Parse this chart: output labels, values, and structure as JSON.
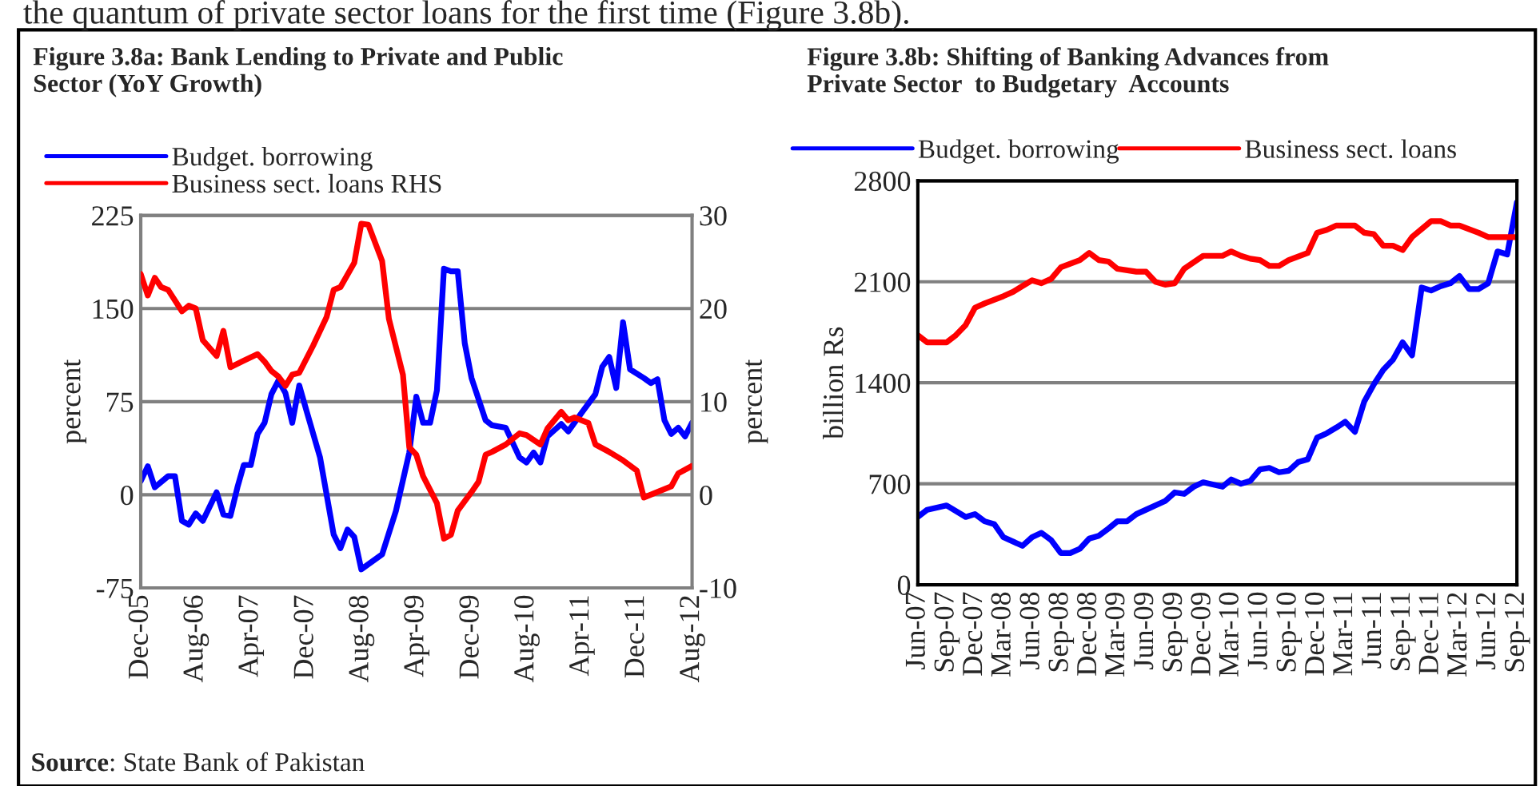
{
  "chart_data": [
    {
      "type": "line",
      "title": "Figure 3.8a: Bank Lending to Private and Public\nSector (YoY Growth)",
      "ylabel": "percent",
      "y2label": "percent",
      "ylim": [
        -75,
        225
      ],
      "yticks": [
        -75,
        0,
        75,
        150,
        225
      ],
      "y2lim": [
        -10,
        30
      ],
      "y2ticks": [
        -10,
        0,
        10,
        20,
        30
      ],
      "xlim": [
        "2005-12",
        "2012-08"
      ],
      "xticks": [
        {
          "value": "2005-12",
          "label": "Dec-05"
        },
        {
          "value": "2006-08",
          "label": "Aug-06"
        },
        {
          "value": "2007-04",
          "label": "Apr-07"
        },
        {
          "value": "2007-12",
          "label": "Dec-07"
        },
        {
          "value": "2008-08",
          "label": "Aug-08"
        },
        {
          "value": "2009-04",
          "label": "Apr-09"
        },
        {
          "value": "2009-12",
          "label": "Dec-09"
        },
        {
          "value": "2010-08",
          "label": "Aug-10"
        },
        {
          "value": "2011-04",
          "label": "Apr-11"
        },
        {
          "value": "2011-12",
          "label": "Dec-11"
        },
        {
          "value": "2012-08",
          "label": "Aug-12"
        }
      ],
      "grid": "y",
      "legend": "top left",
      "line_style": "solid",
      "marker": "none",
      "annotations": [
        "the quantum of private sector loans for the first time (Figure 3.8b).",
        "Source: State Bank of Pakistan"
      ],
      "series": [
        {
          "name": "Budget. borrowing",
          "color": "#0000ff",
          "x": [
            "2005-12",
            "2006-01",
            "2006-02",
            "2006-04",
            "2006-05",
            "2006-06",
            "2006-07",
            "2006-08",
            "2006-09",
            "2006-11",
            "2006-12",
            "2007-01",
            "2007-02",
            "2007-03",
            "2007-04",
            "2007-05",
            "2007-06",
            "2007-07",
            "2007-08",
            "2007-09",
            "2007-10",
            "2007-11",
            "2007-12",
            "2008-02",
            "2008-04",
            "2008-05",
            "2008-06",
            "2008-07",
            "2008-08",
            "2008-11",
            "2009-01",
            "2009-03",
            "2009-04",
            "2009-05",
            "2009-06",
            "2009-07",
            "2009-08",
            "2009-09",
            "2009-10",
            "2009-11",
            "2009-12",
            "2010-02",
            "2010-03",
            "2010-05",
            "2010-07",
            "2010-08",
            "2010-09",
            "2010-10",
            "2010-11",
            "2011-01",
            "2011-02",
            "2011-04",
            "2011-06",
            "2011-07",
            "2011-08",
            "2011-09",
            "2011-10",
            "2011-11",
            "2012-01",
            "2012-02",
            "2012-03",
            "2012-04",
            "2012-05",
            "2012-06",
            "2012-07",
            "2012-08"
          ],
          "values": [
            11,
            23,
            6,
            15,
            15,
            -21,
            -24,
            -15,
            -21,
            2,
            -16,
            -17,
            6,
            24,
            24,
            49,
            58,
            81,
            92,
            82,
            58,
            88,
            69,
            30,
            -32,
            -43,
            -28,
            -34,
            -60,
            -48,
            -13,
            34,
            79,
            58,
            58,
            84,
            182,
            180,
            180,
            122,
            94,
            60,
            56,
            54,
            30,
            26,
            34,
            26,
            47,
            57,
            51,
            66,
            81,
            103,
            111,
            86,
            139,
            101,
            94,
            90,
            93,
            60,
            49,
            54,
            47,
            58
          ]
        },
        {
          "name": "Business sect. loans RHS",
          "color": "#ff0000",
          "axis": "y2",
          "x": [
            "2005-12",
            "2006-01",
            "2006-02",
            "2006-03",
            "2006-04",
            "2006-06",
            "2006-07",
            "2006-08",
            "2006-09",
            "2006-11",
            "2006-12",
            "2007-01",
            "2007-03",
            "2007-05",
            "2007-06",
            "2007-07",
            "2007-08",
            "2007-09",
            "2007-10",
            "2007-11",
            "2008-01",
            "2008-03",
            "2008-04",
            "2008-05",
            "2008-07",
            "2008-08",
            "2008-09",
            "2008-11",
            "2008-12",
            "2009-02",
            "2009-03",
            "2009-04",
            "2009-05",
            "2009-07",
            "2009-08",
            "2009-09",
            "2009-10",
            "2009-12",
            "2010-01",
            "2010-02",
            "2010-03",
            "2010-05",
            "2010-07",
            "2010-08",
            "2010-10",
            "2010-11",
            "2011-01",
            "2011-02",
            "2011-03",
            "2011-05",
            "2011-06",
            "2011-08",
            "2011-10",
            "2011-12",
            "2012-01",
            "2012-03",
            "2012-05",
            "2012-06",
            "2012-08"
          ],
          "values": [
            23.7,
            21.4,
            23.3,
            22.3,
            22,
            19.7,
            20.3,
            20,
            16.6,
            14.9,
            17.6,
            13.7,
            14.4,
            15.1,
            14.3,
            13.3,
            12.7,
            11.7,
            12.9,
            13.1,
            16,
            19.1,
            22,
            22.3,
            24.9,
            29.1,
            29,
            25.1,
            18.9,
            12.9,
            5.1,
            4.3,
            2,
            -0.9,
            -4.7,
            -4.3,
            -1.7,
            0.3,
            1.4,
            4.3,
            4.6,
            5.4,
            6.6,
            6.4,
            5.4,
            7.1,
            8.9,
            8,
            8.3,
            7.7,
            5.4,
            4.6,
            3.7,
            2.6,
            -0.3,
            0.3,
            0.9,
            2.3,
            3.1
          ]
        }
      ]
    },
    {
      "type": "line",
      "title": "Figure 3.8b: Shifting of Banking Advances from\nPrivate Sector  to Budgetary  Accounts",
      "ylabel": "billion Rs",
      "ylim": [
        0,
        2800
      ],
      "yticks": [
        0,
        700,
        1400,
        2100,
        2800
      ],
      "xlim": [
        "2007-06",
        "2012-09"
      ],
      "xticks": [
        {
          "value": "2007-06",
          "label": "Jun-07"
        },
        {
          "value": "2007-09",
          "label": "Sep-07"
        },
        {
          "value": "2007-12",
          "label": "Dec-07"
        },
        {
          "value": "2008-03",
          "label": "Mar-08"
        },
        {
          "value": "2008-06",
          "label": "Jun-08"
        },
        {
          "value": "2008-09",
          "label": "Sep-08"
        },
        {
          "value": "2008-12",
          "label": "Dec-08"
        },
        {
          "value": "2009-03",
          "label": "Mar-09"
        },
        {
          "value": "2009-06",
          "label": "Jun-09"
        },
        {
          "value": "2009-09",
          "label": "Sep-09"
        },
        {
          "value": "2009-12",
          "label": "Dec-09"
        },
        {
          "value": "2010-03",
          "label": "Mar-10"
        },
        {
          "value": "2010-06",
          "label": "Jun-10"
        },
        {
          "value": "2010-09",
          "label": "Sep-10"
        },
        {
          "value": "2010-12",
          "label": "Dec-10"
        },
        {
          "value": "2011-03",
          "label": "Mar-11"
        },
        {
          "value": "2011-06",
          "label": "Jun-11"
        },
        {
          "value": "2011-09",
          "label": "Sep-11"
        },
        {
          "value": "2011-12",
          "label": "Dec-11"
        },
        {
          "value": "2012-03",
          "label": "Mar-12"
        },
        {
          "value": "2012-06",
          "label": "Jun-12"
        },
        {
          "value": "2012-09",
          "label": "Sep-12"
        }
      ],
      "grid": "y",
      "legend": "top",
      "line_style": "solid",
      "marker": "none",
      "series": [
        {
          "name": "Budget. borrowing",
          "color": "#0000ff",
          "x": [
            "2007-06",
            "2007-07",
            "2007-09",
            "2007-11",
            "2007-12",
            "2008-01",
            "2008-02",
            "2008-03",
            "2008-05",
            "2008-06",
            "2008-07",
            "2008-08",
            "2008-09",
            "2008-10",
            "2008-11",
            "2008-12",
            "2009-01",
            "2009-02",
            "2009-03",
            "2009-04",
            "2009-05",
            "2009-06",
            "2009-07",
            "2009-08",
            "2009-09",
            "2009-10",
            "2009-11",
            "2009-12",
            "2010-02",
            "2010-03",
            "2010-04",
            "2010-05",
            "2010-06",
            "2010-07",
            "2010-08",
            "2010-09",
            "2010-10",
            "2010-11",
            "2010-12",
            "2011-01",
            "2011-02",
            "2011-03",
            "2011-04",
            "2011-05",
            "2011-06",
            "2011-07",
            "2011-08",
            "2011-09",
            "2011-10",
            "2011-11",
            "2011-12",
            "2012-01",
            "2012-02",
            "2012-03",
            "2012-04",
            "2012-05",
            "2012-06",
            "2012-07",
            "2012-08",
            "2012-09"
          ],
          "values": [
            470,
            520,
            550,
            470,
            490,
            440,
            420,
            330,
            270,
            330,
            360,
            310,
            220,
            220,
            250,
            320,
            340,
            390,
            440,
            440,
            490,
            520,
            550,
            580,
            640,
            630,
            680,
            710,
            680,
            730,
            700,
            720,
            800,
            810,
            780,
            790,
            850,
            870,
            1020,
            1050,
            1090,
            1130,
            1060,
            1270,
            1390,
            1490,
            1560,
            1680,
            1590,
            2060,
            2040,
            2070,
            2090,
            2140,
            2050,
            2050,
            2090,
            2310,
            2290,
            2650
          ]
        },
        {
          "name": "Business sect. loans",
          "color": "#ff0000",
          "x": [
            "2007-06",
            "2007-07",
            "2007-09",
            "2007-10",
            "2007-11",
            "2007-12",
            "2008-01",
            "2008-03",
            "2008-04",
            "2008-05",
            "2008-06",
            "2008-07",
            "2008-08",
            "2008-09",
            "2008-11",
            "2008-12",
            "2009-01",
            "2009-02",
            "2009-03",
            "2009-05",
            "2009-06",
            "2009-07",
            "2009-08",
            "2009-09",
            "2009-10",
            "2009-12",
            "2010-02",
            "2010-03",
            "2010-04",
            "2010-05",
            "2010-06",
            "2010-07",
            "2010-08",
            "2010-09",
            "2010-11",
            "2010-12",
            "2011-01",
            "2011-02",
            "2011-04",
            "2011-05",
            "2011-06",
            "2011-07",
            "2011-08",
            "2011-09",
            "2011-10",
            "2011-12",
            "2012-01",
            "2012-02",
            "2012-03",
            "2012-05",
            "2012-06",
            "2012-09"
          ],
          "values": [
            1730,
            1680,
            1680,
            1730,
            1800,
            1920,
            1950,
            2000,
            2030,
            2070,
            2110,
            2090,
            2120,
            2200,
            2250,
            2300,
            2250,
            2240,
            2190,
            2170,
            2170,
            2100,
            2080,
            2090,
            2190,
            2280,
            2280,
            2310,
            2280,
            2260,
            2250,
            2210,
            2210,
            2250,
            2300,
            2440,
            2460,
            2490,
            2490,
            2440,
            2430,
            2350,
            2350,
            2320,
            2410,
            2520,
            2520,
            2490,
            2490,
            2440,
            2410,
            2410
          ]
        }
      ]
    }
  ]
}
